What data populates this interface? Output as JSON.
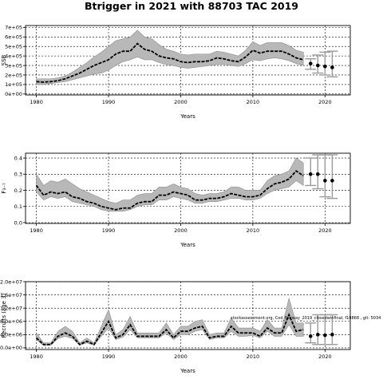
{
  "figure": {
    "title": "Btrigger in 2021 with 88703 TAC 2019",
    "annotation": "stockassessment.org, Cod_Norway_2019_closedwinfinal, f10868 , git: 5034"
  },
  "chart_data": [
    {
      "type": "line",
      "panel": "ssb",
      "ylabel": "SSB",
      "xlabel": "Years",
      "xlim": [
        1978.5,
        2023.5
      ],
      "ylim": [
        -10000,
        720000
      ],
      "x_ticks": [
        1980,
        1990,
        2000,
        2010,
        2020
      ],
      "y_ticks": [
        0,
        100000,
        200000,
        300000,
        400000,
        500000,
        600000,
        700000
      ],
      "y_tick_labels": [
        "0e+00",
        "1e+05",
        "2e+05",
        "3e+05",
        "4e+05",
        "5e+05",
        "6e+05",
        "7e+05"
      ],
      "grid": true,
      "x": [
        1980,
        1981,
        1982,
        1983,
        1984,
        1985,
        1986,
        1987,
        1988,
        1989,
        1990,
        1991,
        1992,
        1993,
        1994,
        1995,
        1996,
        1997,
        1998,
        1999,
        2000,
        2001,
        2002,
        2003,
        2004,
        2005,
        2006,
        2007,
        2008,
        2009,
        2010,
        2011,
        2012,
        2013,
        2014,
        2015,
        2016,
        2017
      ],
      "estimate": [
        130000,
        125000,
        130000,
        140000,
        160000,
        190000,
        220000,
        260000,
        300000,
        330000,
        360000,
        420000,
        450000,
        450000,
        530000,
        470000,
        450000,
        400000,
        380000,
        370000,
        340000,
        330000,
        340000,
        340000,
        350000,
        380000,
        370000,
        350000,
        340000,
        390000,
        460000,
        430000,
        450000,
        450000,
        450000,
        420000,
        380000,
        360000
      ],
      "lower": [
        100000,
        100000,
        110000,
        120000,
        130000,
        150000,
        170000,
        190000,
        210000,
        220000,
        250000,
        300000,
        340000,
        360000,
        390000,
        360000,
        360000,
        330000,
        310000,
        300000,
        280000,
        270000,
        280000,
        290000,
        300000,
        310000,
        310000,
        300000,
        290000,
        320000,
        360000,
        350000,
        370000,
        380000,
        370000,
        350000,
        320000,
        300000
      ],
      "upper": [
        160000,
        160000,
        160000,
        170000,
        190000,
        230000,
        280000,
        330000,
        390000,
        440000,
        500000,
        560000,
        580000,
        600000,
        670000,
        600000,
        580000,
        520000,
        470000,
        450000,
        420000,
        410000,
        420000,
        420000,
        420000,
        450000,
        440000,
        420000,
        400000,
        460000,
        550000,
        510000,
        540000,
        540000,
        540000,
        510000,
        460000,
        440000
      ],
      "forecast": {
        "x": [
          2018,
          2019,
          2020,
          2021
        ],
        "median": [
          320000,
          300000,
          290000,
          280000
        ],
        "lower": [
          260000,
          220000,
          200000,
          180000
        ],
        "upper": [
          370000,
          410000,
          440000,
          450000
        ]
      }
    },
    {
      "type": "line",
      "panel": "fbar",
      "ylabel": "F₃₋₇",
      "xlabel": "Years",
      "xlim": [
        1978.5,
        2023.5
      ],
      "ylim": [
        -0.005,
        0.43
      ],
      "x_ticks": [
        1980,
        1990,
        2000,
        2010,
        2020
      ],
      "y_ticks": [
        0.0,
        0.1,
        0.2,
        0.3,
        0.4
      ],
      "y_tick_labels": [
        "0.0",
        "0.1",
        "0.2",
        "0.3",
        "0.4"
      ],
      "grid": true,
      "x": [
        1980,
        1981,
        1982,
        1983,
        1984,
        1985,
        1986,
        1987,
        1988,
        1989,
        1990,
        1991,
        1992,
        1993,
        1994,
        1995,
        1996,
        1997,
        1998,
        1999,
        2000,
        2001,
        2002,
        2003,
        2004,
        2005,
        2006,
        2007,
        2008,
        2009,
        2010,
        2011,
        2012,
        2013,
        2014,
        2015,
        2016,
        2017
      ],
      "estimate": [
        0.23,
        0.17,
        0.19,
        0.18,
        0.19,
        0.16,
        0.15,
        0.13,
        0.12,
        0.1,
        0.09,
        0.08,
        0.09,
        0.09,
        0.12,
        0.13,
        0.13,
        0.17,
        0.17,
        0.19,
        0.18,
        0.17,
        0.14,
        0.14,
        0.15,
        0.15,
        0.16,
        0.18,
        0.17,
        0.16,
        0.16,
        0.17,
        0.21,
        0.24,
        0.25,
        0.27,
        0.32,
        0.29
      ],
      "lower": [
        0.19,
        0.14,
        0.16,
        0.15,
        0.16,
        0.13,
        0.12,
        0.11,
        0.1,
        0.08,
        0.07,
        0.07,
        0.07,
        0.08,
        0.1,
        0.11,
        0.11,
        0.14,
        0.14,
        0.16,
        0.15,
        0.14,
        0.12,
        0.12,
        0.13,
        0.13,
        0.14,
        0.15,
        0.15,
        0.14,
        0.14,
        0.15,
        0.18,
        0.2,
        0.21,
        0.22,
        0.26,
        0.23
      ],
      "upper": [
        0.3,
        0.23,
        0.26,
        0.25,
        0.27,
        0.24,
        0.21,
        0.19,
        0.17,
        0.15,
        0.13,
        0.12,
        0.14,
        0.14,
        0.17,
        0.18,
        0.18,
        0.22,
        0.22,
        0.24,
        0.22,
        0.21,
        0.18,
        0.17,
        0.18,
        0.18,
        0.19,
        0.22,
        0.22,
        0.2,
        0.2,
        0.2,
        0.26,
        0.29,
        0.3,
        0.32,
        0.4,
        0.37
      ],
      "forecast": {
        "x": [
          2018,
          2019,
          2020,
          2021
        ],
        "median": [
          0.3,
          0.3,
          0.26,
          0.26
        ],
        "lower": [
          0.23,
          0.21,
          0.16,
          0.15
        ],
        "upper": [
          0.4,
          0.42,
          0.42,
          0.42
        ]
      }
    },
    {
      "type": "line",
      "panel": "recruitment",
      "ylabel": "Recruits (age 3)",
      "xlabel": "Years",
      "xlim": [
        1978.5,
        2023.5
      ],
      "ylim": [
        -500000,
        20000000
      ],
      "x_ticks": [
        1980,
        1990,
        2000,
        2010,
        2020
      ],
      "y_ticks": [
        0,
        4000000,
        8000000,
        12000000,
        16000000,
        20000000
      ],
      "y_tick_labels": [
        "0.0e+00",
        "4.0e+06",
        "8.0e+06",
        "1.2e+07",
        "1.6e+07",
        "2.0e+07"
      ],
      "grid": true,
      "x": [
        1980,
        1981,
        1982,
        1983,
        1984,
        1985,
        1986,
        1987,
        1988,
        1989,
        1990,
        1991,
        1992,
        1993,
        1994,
        1995,
        1996,
        1997,
        1998,
        1999,
        2000,
        2001,
        2002,
        2003,
        2004,
        2005,
        2006,
        2007,
        2008,
        2009,
        2010,
        2011,
        2012,
        2013,
        2014,
        2015,
        2016,
        2017
      ],
      "estimate": [
        3000000,
        1000000,
        1000000,
        3500000,
        4500000,
        3500000,
        1000000,
        2000000,
        1000000,
        4500000,
        8000000,
        3000000,
        4000000,
        7000000,
        3500000,
        3500000,
        3500000,
        3500000,
        5500000,
        3000000,
        5000000,
        5000000,
        6000000,
        6500000,
        3000000,
        3500000,
        3500000,
        6500000,
        4500000,
        4500000,
        4500000,
        3500000,
        6000000,
        4500000,
        4500000,
        10000000,
        5000000,
        5500000
      ],
      "lower": [
        2500000,
        700000,
        800000,
        2800000,
        3500000,
        2800000,
        800000,
        1500000,
        800000,
        3500000,
        6000000,
        2500000,
        3200000,
        5500000,
        3000000,
        3000000,
        3000000,
        3000000,
        4500000,
        2500000,
        4000000,
        4000000,
        5000000,
        5500000,
        2500000,
        3000000,
        3000000,
        5000000,
        3500000,
        3500000,
        3800000,
        3000000,
        5000000,
        3500000,
        3500000,
        7000000,
        3500000,
        3500000
      ],
      "upper": [
        4500000,
        1500000,
        1500000,
        5000000,
        6500000,
        5000000,
        1500000,
        3000000,
        1500000,
        6500000,
        11500000,
        4000000,
        5500000,
        9500000,
        4500000,
        4500000,
        4500000,
        4500000,
        7500000,
        4000000,
        6500000,
        6500000,
        8000000,
        8500000,
        4000000,
        4500000,
        4500000,
        9000000,
        6000000,
        6000000,
        6000000,
        5000000,
        8500000,
        6000000,
        6000000,
        15000000,
        7500000,
        7500000
      ],
      "forecast": {
        "x": [
          2018,
          2019,
          2020,
          2021
        ],
        "median": [
          3500000,
          4000000,
          3800000,
          4000000
        ],
        "lower": [
          1500000,
          1000000,
          1000000,
          1000000
        ],
        "upper": [
          7500000,
          10000000,
          10000000,
          10000000
        ]
      }
    }
  ]
}
